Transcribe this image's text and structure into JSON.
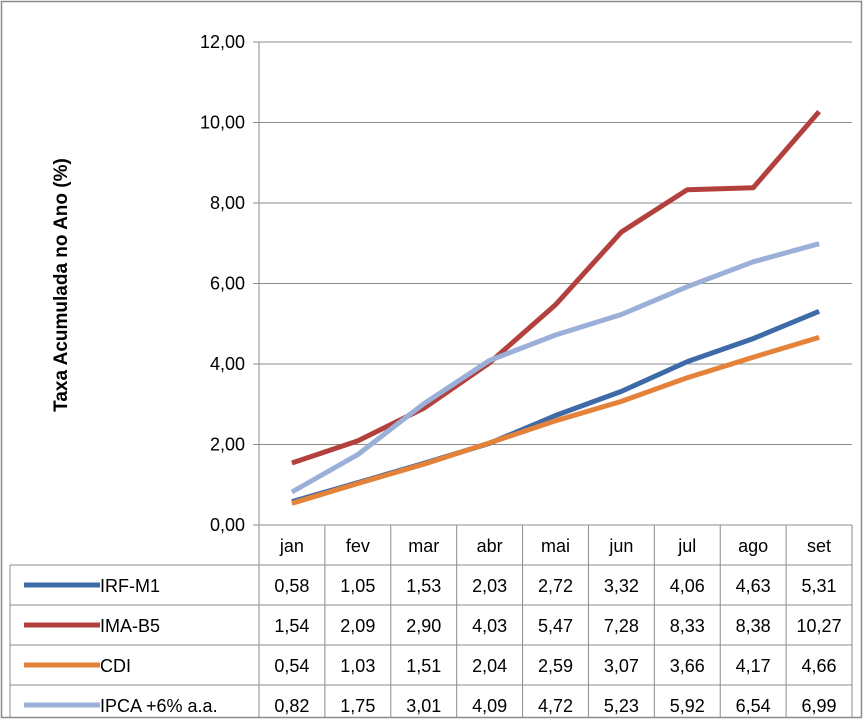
{
  "chart_data": {
    "type": "line",
    "title": "",
    "xlabel": "",
    "ylabel": "Taxa Acumulada no Ano (%)",
    "ylim": [
      0,
      12
    ],
    "yticks": [
      "0,00",
      "2,00",
      "4,00",
      "6,00",
      "8,00",
      "10,00",
      "12,00"
    ],
    "grid": true,
    "legend": "data-table",
    "categories": [
      "jan",
      "fev",
      "mar",
      "abr",
      "mai",
      "jun",
      "jul",
      "ago",
      "set"
    ],
    "series": [
      {
        "name": "IRF-M1",
        "color": "#3E6BA8",
        "values": [
          0.58,
          1.05,
          1.53,
          2.03,
          2.72,
          3.32,
          4.06,
          4.63,
          5.31
        ],
        "labels": [
          "0,58",
          "1,05",
          "1,53",
          "2,03",
          "2,72",
          "3,32",
          "4,06",
          "4,63",
          "5,31"
        ]
      },
      {
        "name": "IMA-B5",
        "color": "#B2403D",
        "values": [
          1.54,
          2.09,
          2.9,
          4.03,
          5.47,
          7.28,
          8.33,
          8.38,
          10.27
        ],
        "labels": [
          "1,54",
          "2,09",
          "2,90",
          "4,03",
          "5,47",
          "7,28",
          "8,33",
          "8,38",
          "10,27"
        ]
      },
      {
        "name": "CDI",
        "color": "#E5823A",
        "values": [
          0.54,
          1.03,
          1.51,
          2.04,
          2.59,
          3.07,
          3.66,
          4.17,
          4.66
        ],
        "labels": [
          "0,54",
          "1,03",
          "1,51",
          "2,04",
          "2,59",
          "3,07",
          "3,66",
          "4,17",
          "4,66"
        ]
      },
      {
        "name": "IPCA +6% a.a.",
        "color": "#9BB0D8",
        "values": [
          0.82,
          1.75,
          3.01,
          4.09,
          4.72,
          5.23,
          5.92,
          6.54,
          6.99
        ],
        "labels": [
          "0,82",
          "1,75",
          "3,01",
          "4,09",
          "4,72",
          "5,23",
          "5,92",
          "6,54",
          "6,99"
        ]
      }
    ]
  }
}
